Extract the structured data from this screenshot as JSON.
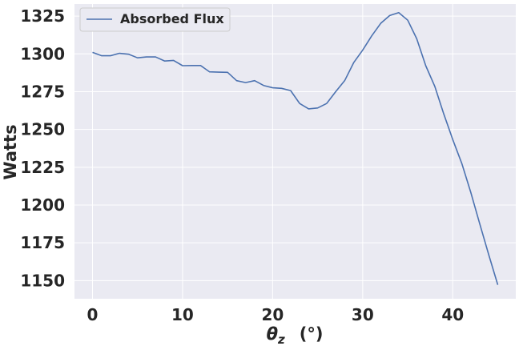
{
  "chart_data": {
    "type": "line",
    "title": "",
    "xlabel_symbol": "θ",
    "xlabel_subscript": "z",
    "xlabel_unit": "(°)",
    "ylabel": "Watts",
    "xlim": [
      -2,
      47
    ],
    "ylim": [
      1138,
      1333
    ],
    "x_ticks": [
      0,
      10,
      20,
      30,
      40
    ],
    "y_ticks": [
      1150,
      1175,
      1200,
      1225,
      1250,
      1275,
      1300,
      1325
    ],
    "grid": true,
    "legend_position": "top-left",
    "series": [
      {
        "name": "Absorbed Flux",
        "color": "#4c72b0",
        "x": [
          0,
          1,
          2,
          3,
          4,
          5,
          6,
          7,
          8,
          9,
          10,
          11,
          12,
          13,
          14,
          15,
          16,
          17,
          18,
          19,
          20,
          21,
          22,
          23,
          24,
          25,
          26,
          27,
          28,
          29,
          30,
          31,
          32,
          33,
          34,
          35,
          36,
          37,
          38,
          39,
          40,
          41,
          42,
          43,
          44,
          45
        ],
        "y": [
          1301,
          1298.8,
          1298.8,
          1300.4,
          1299.8,
          1297.4,
          1298,
          1298,
          1295.3,
          1295.7,
          1292.2,
          1292.3,
          1292.3,
          1288.1,
          1287.9,
          1287.8,
          1282.3,
          1281,
          1282.3,
          1279.1,
          1277.6,
          1277.2,
          1275.7,
          1267.2,
          1263.6,
          1264.2,
          1267.2,
          1275,
          1282.3,
          1294.2,
          1302.5,
          1311.9,
          1320.2,
          1325.4,
          1327.3,
          1322.3,
          1310,
          1292.2,
          1278.6,
          1260.3,
          1243.3,
          1227.6,
          1208.4,
          1187.5,
          1167,
          1147.2
        ]
      }
    ],
    "colors": {
      "background": "#eaeaf2",
      "grid": "#ffffff",
      "text": "#262626",
      "line": "#4c72b0"
    }
  }
}
